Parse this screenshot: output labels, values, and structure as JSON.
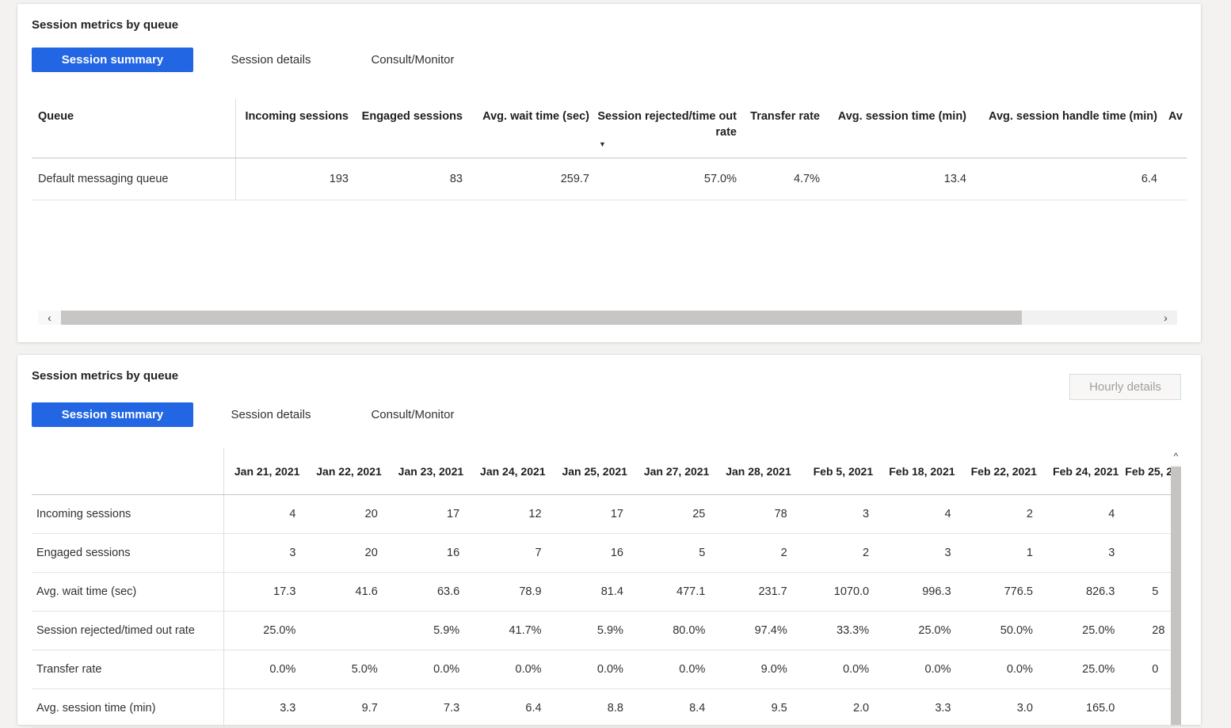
{
  "colors": {
    "accent": "#2266e3",
    "page_bg": "#f3f2f1"
  },
  "panel1": {
    "title": "Session metrics by queue",
    "tabs": [
      {
        "label": "Session summary",
        "active": true
      },
      {
        "label": "Session details",
        "active": false
      },
      {
        "label": "Consult/Monitor",
        "active": false
      }
    ],
    "table": {
      "columns": [
        "Queue",
        "Incoming sessions",
        "Engaged sessions",
        "Avg. wait time (sec)",
        "Session rejected/time out rate",
        "Transfer rate",
        "Avg. session time (min)",
        "Avg. session handle time (min)",
        "Av"
      ],
      "sort": {
        "column": "Avg. wait time (sec)",
        "direction": "descending",
        "icon": "▼"
      },
      "rows": [
        {
          "queue": "Default messaging queue",
          "values": [
            "193",
            "83",
            "259.7",
            "57.0%",
            "4.7%",
            "13.4",
            "6.4",
            ""
          ]
        }
      ]
    },
    "hscrollbar": {
      "left_arrow": "‹",
      "right_arrow": "›"
    }
  },
  "panel2": {
    "title": "Session metrics by queue",
    "hourly_details_button": "Hourly details",
    "tabs": [
      {
        "label": "Session summary",
        "active": true
      },
      {
        "label": "Session details",
        "active": false
      },
      {
        "label": "Consult/Monitor",
        "active": false
      }
    ],
    "table": {
      "date_columns": [
        "Jan 21, 2021",
        "Jan 22, 2021",
        "Jan 23, 2021",
        "Jan 24, 2021",
        "Jan 25, 2021",
        "Jan 27, 2021",
        "Jan 28, 2021",
        "Feb 5, 2021",
        "Feb 18, 2021",
        "Feb 22, 2021",
        "Feb 24, 2021",
        "Feb 25, 2"
      ],
      "rows": [
        {
          "label": "Incoming sessions",
          "values": [
            "4",
            "20",
            "17",
            "12",
            "17",
            "25",
            "78",
            "3",
            "4",
            "2",
            "4",
            ""
          ]
        },
        {
          "label": "Engaged sessions",
          "values": [
            "3",
            "20",
            "16",
            "7",
            "16",
            "5",
            "2",
            "2",
            "3",
            "1",
            "3",
            ""
          ]
        },
        {
          "label": "Avg. wait time (sec)",
          "values": [
            "17.3",
            "41.6",
            "63.6",
            "78.9",
            "81.4",
            "477.1",
            "231.7",
            "1070.0",
            "996.3",
            "776.5",
            "826.3",
            "5"
          ]
        },
        {
          "label": "Session rejected/timed out rate",
          "values": [
            "25.0%",
            "",
            "5.9%",
            "41.7%",
            "5.9%",
            "80.0%",
            "97.4%",
            "33.3%",
            "25.0%",
            "50.0%",
            "25.0%",
            "28"
          ]
        },
        {
          "label": "Transfer rate",
          "values": [
            "0.0%",
            "5.0%",
            "0.0%",
            "0.0%",
            "0.0%",
            "0.0%",
            "9.0%",
            "0.0%",
            "0.0%",
            "0.0%",
            "25.0%",
            "0"
          ]
        },
        {
          "label": "Avg. session time (min)",
          "values": [
            "3.3",
            "9.7",
            "7.3",
            "6.4",
            "8.8",
            "8.4",
            "9.5",
            "2.0",
            "3.3",
            "3.0",
            "165.0",
            ""
          ]
        }
      ]
    },
    "vscrollbar": {
      "up_arrow": "^"
    }
  }
}
